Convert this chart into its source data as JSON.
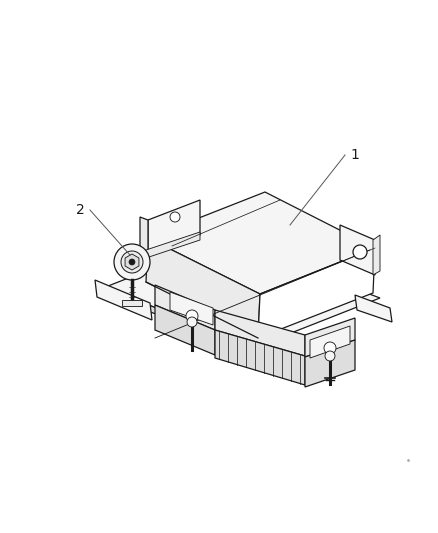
{
  "background_color": "#ffffff",
  "line_color": "#1a1a1a",
  "label_color": "#555555",
  "label_1": "1",
  "label_2": "2",
  "figsize": [
    4.39,
    5.33
  ],
  "dpi": 100,
  "face_color_light": "#f5f5f5",
  "face_color_mid": "#ebebeb",
  "face_color_dark": "#dedede",
  "face_color_white": "#ffffff"
}
